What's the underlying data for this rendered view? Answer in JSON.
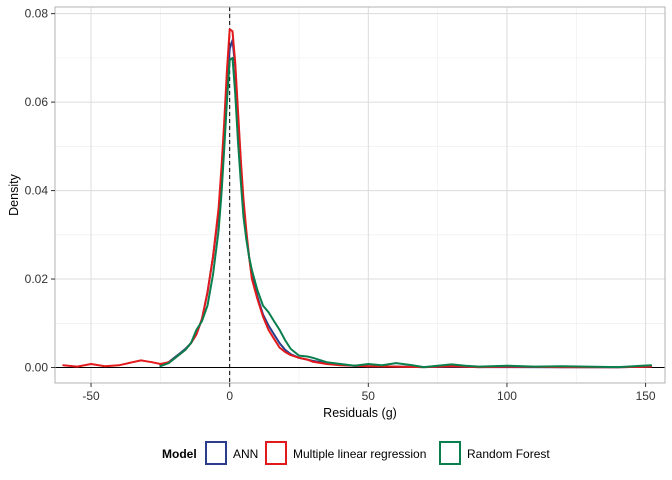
{
  "chart_data": {
    "type": "line",
    "title": "",
    "xlabel": "Residuals (g)",
    "ylabel": "Density",
    "xlim": [
      -63,
      157
    ],
    "ylim": [
      -0.0035,
      0.0815
    ],
    "x_ticks": [
      -50,
      0,
      50,
      100,
      150
    ],
    "y_ticks": [
      0.0,
      0.02,
      0.04,
      0.06,
      0.08
    ],
    "x_tick_labels": [
      "-50",
      "0",
      "50",
      "100",
      "150"
    ],
    "y_tick_labels": [
      "0.00",
      "0.02",
      "0.04",
      "0.06",
      "0.08"
    ],
    "grid": true,
    "reference_lines": {
      "vertical_dashed_x": 0,
      "horizontal_solid_y": 0
    },
    "legend": {
      "title": "Model",
      "position": "bottom"
    },
    "series": [
      {
        "name": "ANN",
        "color": "#2B3E8E",
        "x": [
          -25,
          -22,
          -20,
          -18,
          -16,
          -14,
          -12,
          -10,
          -8,
          -6,
          -4,
          -3,
          -2,
          -1,
          0,
          1,
          2,
          3,
          4,
          5,
          6,
          7,
          8,
          10,
          12,
          14,
          16,
          18,
          20,
          22,
          25,
          28,
          30,
          35,
          40,
          45,
          50,
          60,
          70,
          80,
          90,
          100,
          120,
          140,
          152
        ],
        "y": [
          0.0005,
          0.0012,
          0.0022,
          0.0032,
          0.0042,
          0.0055,
          0.0075,
          0.011,
          0.017,
          0.025,
          0.035,
          0.042,
          0.052,
          0.063,
          0.072,
          0.074,
          0.068,
          0.057,
          0.046,
          0.037,
          0.03,
          0.025,
          0.021,
          0.016,
          0.012,
          0.0095,
          0.0075,
          0.0055,
          0.004,
          0.003,
          0.0022,
          0.0018,
          0.0015,
          0.001,
          0.0006,
          0.0004,
          0.0003,
          0.0002,
          0.0001,
          0.0002,
          0.0001,
          0.0001,
          5e-05,
          5e-05,
          0.0002
        ]
      },
      {
        "name": "Multiple linear regression",
        "color": "#E31A1C",
        "x": [
          -60,
          -55,
          -50,
          -45,
          -40,
          -35,
          -32,
          -30,
          -28,
          -25,
          -22,
          -20,
          -18,
          -16,
          -14,
          -12,
          -10,
          -8,
          -6,
          -4,
          -3,
          -2,
          -1,
          0,
          1,
          2,
          3,
          4,
          5,
          6,
          7,
          8,
          10,
          12,
          14,
          16,
          18,
          20,
          22,
          25,
          28,
          30,
          35,
          40,
          45,
          50,
          60,
          70,
          80,
          90,
          100,
          120,
          140,
          152
        ],
        "y": [
          0.0005,
          0.0002,
          0.0008,
          0.0003,
          0.0005,
          0.0012,
          0.0016,
          0.0014,
          0.0012,
          0.0008,
          0.0012,
          0.002,
          0.003,
          0.004,
          0.0055,
          0.0075,
          0.011,
          0.017,
          0.025,
          0.036,
          0.045,
          0.055,
          0.067,
          0.0765,
          0.076,
          0.069,
          0.058,
          0.047,
          0.038,
          0.031,
          0.025,
          0.02,
          0.0155,
          0.0115,
          0.0085,
          0.0065,
          0.0045,
          0.0035,
          0.0028,
          0.0022,
          0.0018,
          0.0013,
          0.0008,
          0.0005,
          0.0004,
          0.0003,
          0.0002,
          0.0001,
          0.0003,
          0.0001,
          0.0002,
          0.0001,
          5e-05,
          0.0002
        ]
      },
      {
        "name": "Random Forest",
        "color": "#0A7F4E",
        "x": [
          -25,
          -22,
          -20,
          -18,
          -16,
          -14,
          -12,
          -10,
          -8,
          -6,
          -4,
          -3,
          -2,
          -1,
          0,
          1,
          2,
          3,
          4,
          5,
          6,
          7,
          8,
          10,
          12,
          14,
          16,
          18,
          20,
          22,
          25,
          28,
          30,
          35,
          40,
          45,
          50,
          55,
          60,
          65,
          70,
          80,
          85,
          90,
          100,
          110,
          120,
          140,
          152
        ],
        "y": [
          0.0003,
          0.001,
          0.002,
          0.003,
          0.004,
          0.0055,
          0.0085,
          0.0105,
          0.014,
          0.021,
          0.031,
          0.039,
          0.049,
          0.06,
          0.0695,
          0.07,
          0.062,
          0.051,
          0.042,
          0.034,
          0.029,
          0.025,
          0.022,
          0.0175,
          0.014,
          0.0125,
          0.0105,
          0.0085,
          0.0062,
          0.0042,
          0.0027,
          0.0025,
          0.0022,
          0.0012,
          0.0008,
          0.0004,
          0.0008,
          0.0005,
          0.001,
          0.0006,
          0.0001,
          0.0007,
          0.0004,
          0.0002,
          0.0004,
          0.0002,
          0.0003,
          0.0001,
          0.0005
        ]
      }
    ]
  }
}
